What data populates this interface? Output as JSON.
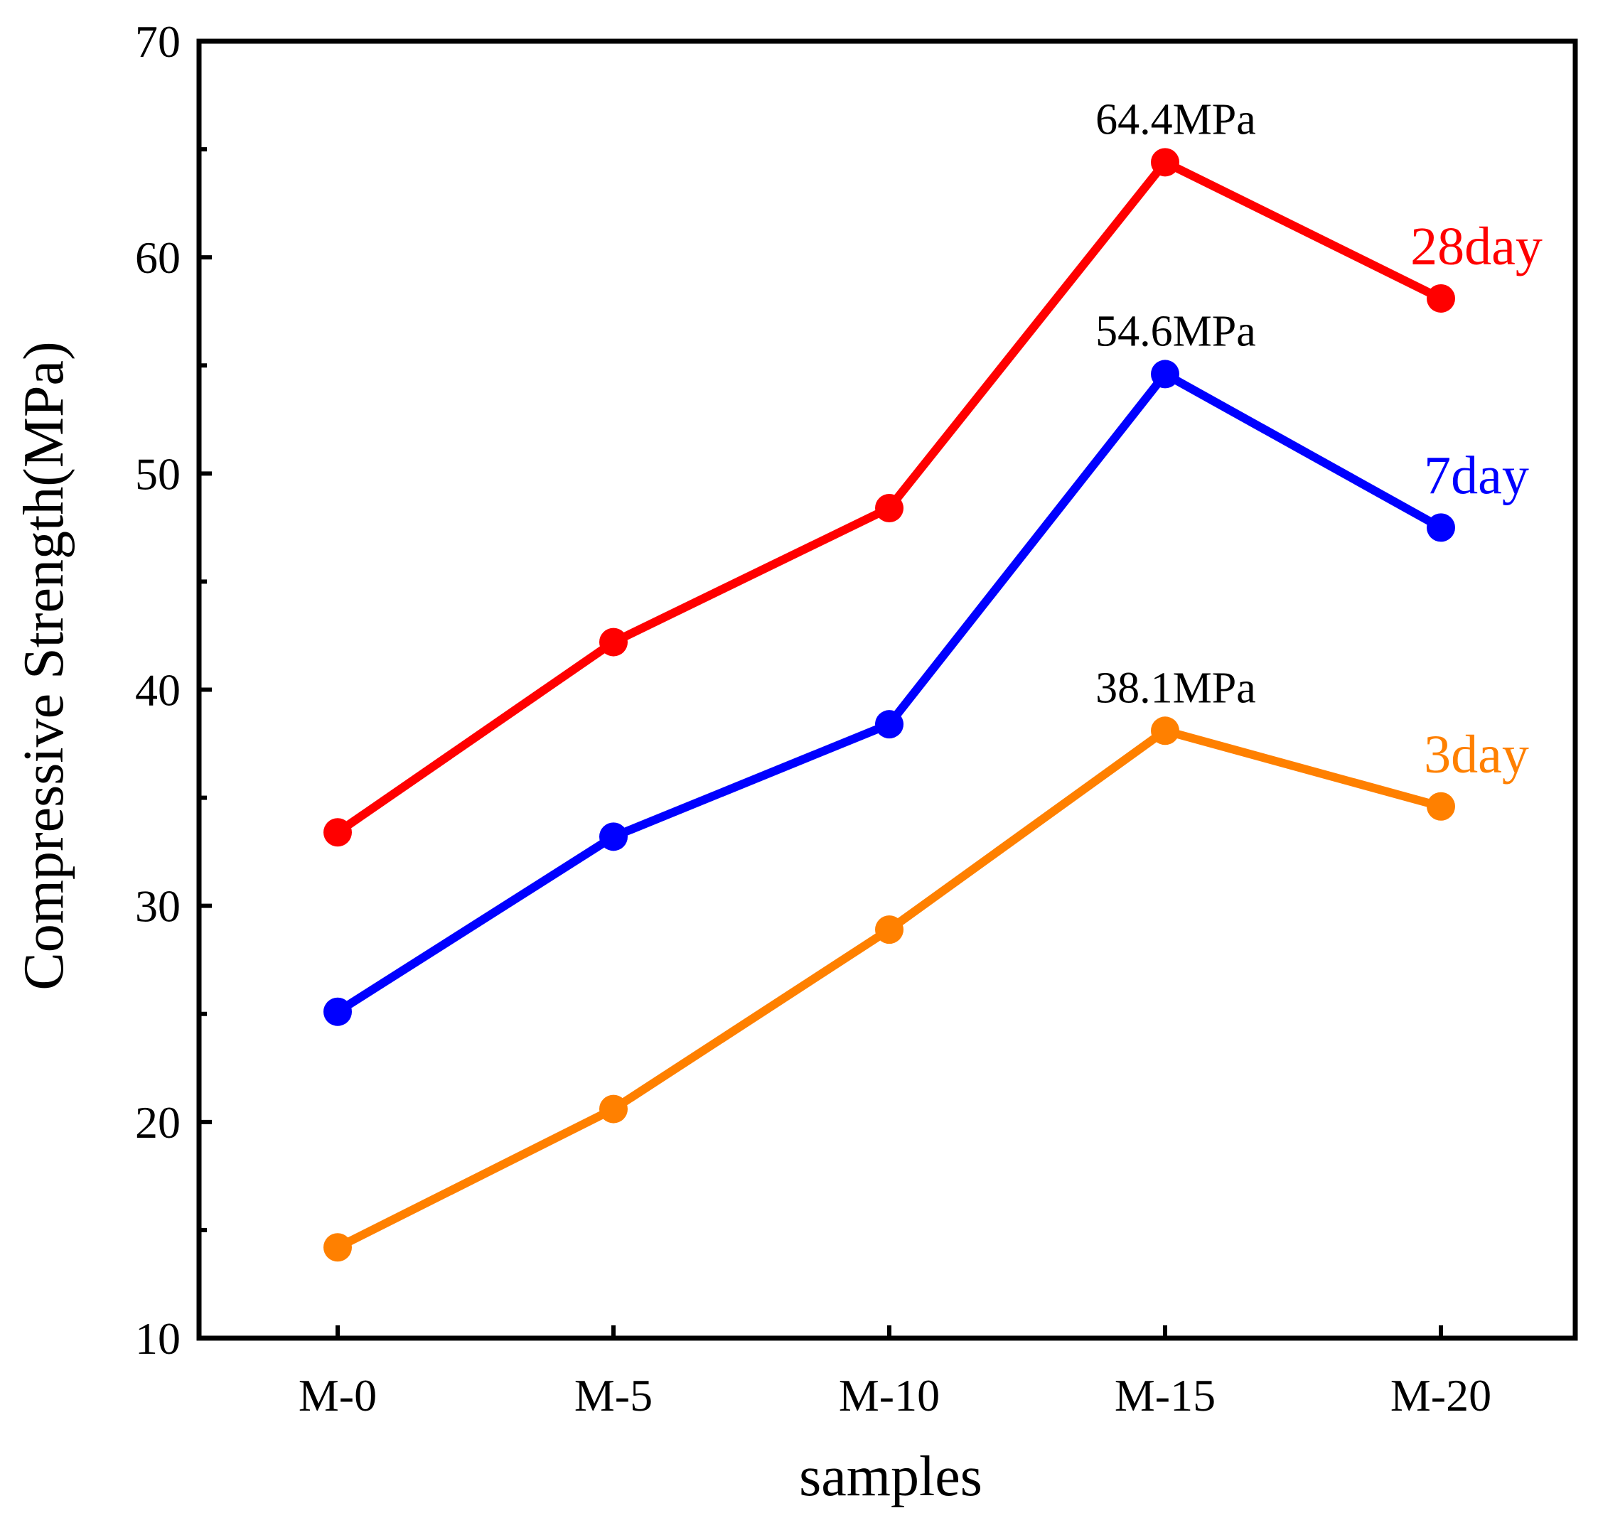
{
  "chart_data": {
    "type": "line",
    "title": "",
    "xlabel": "samples",
    "ylabel": "Compressive Strength(MPa)",
    "categories": [
      "M-0",
      "M-5",
      "M-10",
      "M-15",
      "M-20"
    ],
    "ylim": [
      10,
      70
    ],
    "yticks": [
      10,
      20,
      30,
      40,
      50,
      60,
      70
    ],
    "yticks_minor": [
      15,
      25,
      35,
      45,
      55,
      65
    ],
    "grid": false,
    "legend": "inline labels at right end of each series",
    "series": [
      {
        "name": "28day",
        "color": "#ff0000",
        "values": [
          33.4,
          42.2,
          48.4,
          64.4,
          58.1
        ]
      },
      {
        "name": "7day",
        "color": "#0000ff",
        "values": [
          25.1,
          33.2,
          38.4,
          54.6,
          47.5
        ]
      },
      {
        "name": "3day",
        "color": "#ff8000",
        "values": [
          14.2,
          20.6,
          28.9,
          38.1,
          34.6
        ]
      }
    ],
    "annotations": [
      {
        "text": "64.4MPa",
        "series": "28day",
        "category": "M-15",
        "value": 64.4
      },
      {
        "text": "54.6MPa",
        "series": "7day",
        "category": "M-15",
        "value": 54.6
      },
      {
        "text": "38.1MPa",
        "series": "3day",
        "category": "M-15",
        "value": 38.1
      }
    ]
  }
}
